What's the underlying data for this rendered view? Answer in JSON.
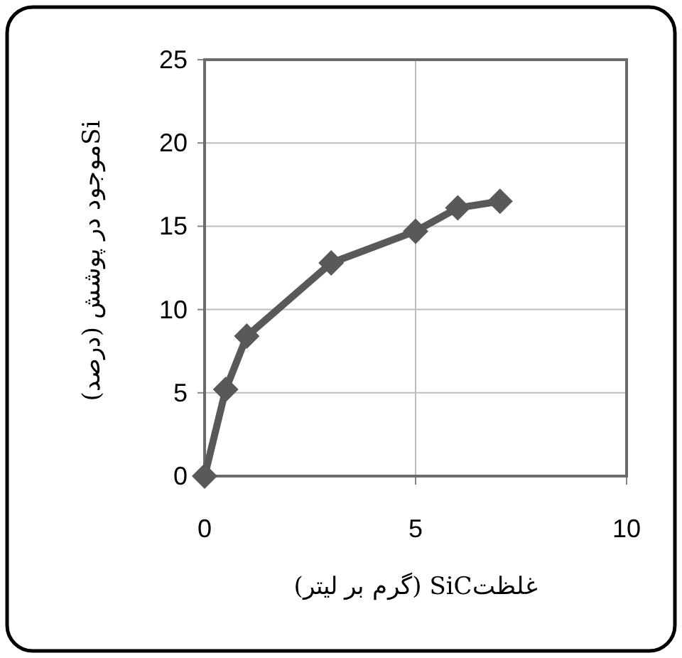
{
  "chart_data": {
    "type": "line",
    "xlabel": "غلظتSiC  (گرم بر لیتر)",
    "ylabel": "Siموجود در پوشش (درصد)",
    "x": [
      0,
      0.5,
      1,
      3,
      5,
      6,
      7
    ],
    "series": [
      {
        "color": "#595959",
        "values": [
          0,
          5.2,
          8.4,
          12.8,
          14.7,
          16.1,
          16.5
        ]
      }
    ],
    "xlim": [
      0,
      10
    ],
    "xticks": [
      0,
      5,
      10
    ],
    "ylim": [
      0,
      25
    ],
    "yticks": [
      0,
      5,
      10,
      15,
      20,
      25
    ],
    "grid": true,
    "marker": "diamond",
    "line_style": "solid"
  }
}
